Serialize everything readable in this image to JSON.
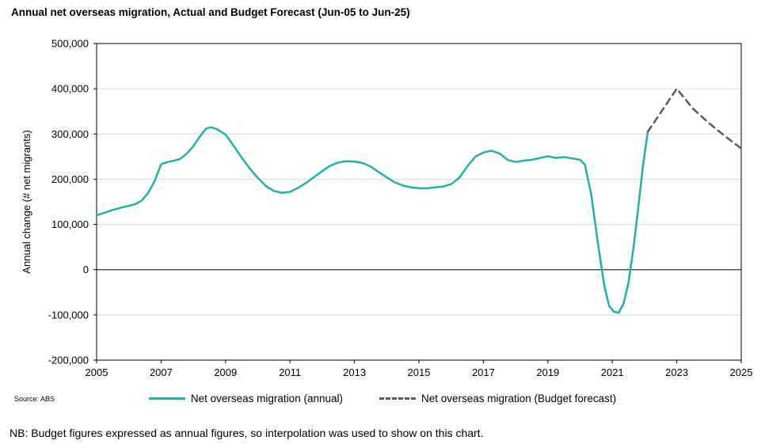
{
  "chart": {
    "title": "Annual net overseas migration, Actual and Budget Forecast (Jun-05 to Jun-25)",
    "source": "Source: ABS",
    "note": "NB: Budget figures expressed as annual figures, so interpolation was used to show on this chart."
  },
  "chart_data": {
    "type": "line",
    "title": "Annual net overseas migration, Actual and Budget Forecast (Jun-05 to Jun-25)",
    "xlabel": "",
    "ylabel": "Annual change (# net migrants)",
    "x_range": [
      2005,
      2025
    ],
    "ylim": [
      -200000,
      500000
    ],
    "grid": "horizontal",
    "legend_position": "bottom",
    "gridline_color": "#d9d9d9",
    "axis_color": "#000000",
    "x_ticks": [
      2005,
      2007,
      2009,
      2011,
      2013,
      2015,
      2017,
      2019,
      2021,
      2023,
      2025
    ],
    "y_ticks": [
      {
        "value": 500000,
        "label": "500,000"
      },
      {
        "value": 400000,
        "label": "400,000"
      },
      {
        "value": 300000,
        "label": "300,000"
      },
      {
        "value": 200000,
        "label": "200,000"
      },
      {
        "value": 100000,
        "label": "100,000"
      },
      {
        "value": 0,
        "label": "0"
      },
      {
        "value": -100000,
        "label": "-100,000"
      },
      {
        "value": -200000,
        "label": "-200,000"
      }
    ],
    "series": [
      {
        "name": "Net overseas migration (annual)",
        "style": "solid",
        "color": "#20B2AA",
        "points": [
          [
            2005.0,
            120000
          ],
          [
            2005.25,
            126000
          ],
          [
            2005.5,
            132000
          ],
          [
            2005.75,
            137000
          ],
          [
            2006.0,
            141000
          ],
          [
            2006.2,
            145000
          ],
          [
            2006.4,
            153000
          ],
          [
            2006.6,
            170000
          ],
          [
            2006.8,
            196000
          ],
          [
            2007.0,
            233000
          ],
          [
            2007.2,
            238000
          ],
          [
            2007.4,
            241000
          ],
          [
            2007.6,
            245000
          ],
          [
            2007.8,
            257000
          ],
          [
            2008.0,
            273000
          ],
          [
            2008.2,
            294000
          ],
          [
            2008.4,
            312000
          ],
          [
            2008.55,
            315000
          ],
          [
            2008.75,
            310000
          ],
          [
            2009.0,
            299000
          ],
          [
            2009.25,
            274000
          ],
          [
            2009.5,
            248000
          ],
          [
            2009.75,
            224000
          ],
          [
            2010.0,
            203000
          ],
          [
            2010.25,
            185000
          ],
          [
            2010.5,
            174000
          ],
          [
            2010.75,
            170000
          ],
          [
            2011.0,
            172000
          ],
          [
            2011.25,
            181000
          ],
          [
            2011.5,
            192000
          ],
          [
            2011.75,
            205000
          ],
          [
            2012.0,
            218000
          ],
          [
            2012.25,
            230000
          ],
          [
            2012.5,
            237000
          ],
          [
            2012.75,
            240000
          ],
          [
            2013.0,
            239000
          ],
          [
            2013.25,
            236000
          ],
          [
            2013.5,
            228000
          ],
          [
            2013.75,
            216000
          ],
          [
            2014.0,
            204000
          ],
          [
            2014.25,
            193000
          ],
          [
            2014.5,
            186000
          ],
          [
            2014.75,
            182000
          ],
          [
            2015.0,
            180000
          ],
          [
            2015.25,
            180000
          ],
          [
            2015.5,
            182000
          ],
          [
            2015.75,
            184000
          ],
          [
            2016.0,
            189000
          ],
          [
            2016.25,
            203000
          ],
          [
            2016.5,
            228000
          ],
          [
            2016.75,
            250000
          ],
          [
            2017.0,
            259000
          ],
          [
            2017.25,
            263000
          ],
          [
            2017.5,
            257000
          ],
          [
            2017.75,
            243000
          ],
          [
            2018.0,
            238000
          ],
          [
            2018.25,
            241000
          ],
          [
            2018.5,
            243000
          ],
          [
            2018.75,
            247000
          ],
          [
            2019.0,
            251000
          ],
          [
            2019.25,
            247000
          ],
          [
            2019.5,
            249000
          ],
          [
            2019.75,
            246000
          ],
          [
            2020.0,
            243000
          ],
          [
            2020.15,
            232000
          ],
          [
            2020.35,
            165000
          ],
          [
            2020.55,
            60000
          ],
          [
            2020.75,
            -35000
          ],
          [
            2020.9,
            -80000
          ],
          [
            2021.05,
            -93000
          ],
          [
            2021.2,
            -95000
          ],
          [
            2021.35,
            -75000
          ],
          [
            2021.5,
            -30000
          ],
          [
            2021.65,
            45000
          ],
          [
            2021.8,
            135000
          ],
          [
            2021.95,
            230000
          ],
          [
            2022.1,
            305000
          ]
        ]
      },
      {
        "name": "Net overseas migration (Budget forecast)",
        "style": "dashed",
        "color": "#595959",
        "points": [
          [
            2022.1,
            305000
          ],
          [
            2023.0,
            400000
          ],
          [
            2023.5,
            356000
          ],
          [
            2024.0,
            324000
          ],
          [
            2024.5,
            295000
          ],
          [
            2025.0,
            268000
          ]
        ]
      }
    ]
  }
}
